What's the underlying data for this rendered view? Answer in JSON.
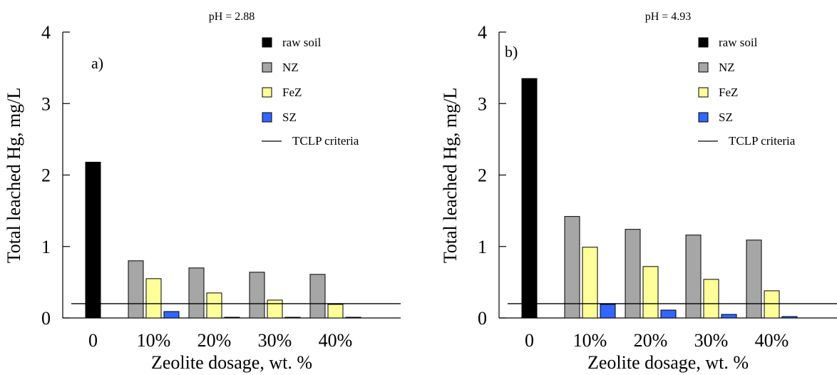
{
  "chart_data": [
    {
      "type": "bar",
      "title": "pH = 2.88",
      "panel_label": "a)",
      "xlabel": "Zeolite dosage, wt. %",
      "ylabel": "Total leached Hg, mg/L",
      "ylim": [
        0,
        4
      ],
      "yticks": [
        "0",
        "1",
        "2",
        "3",
        "4"
      ],
      "categories": [
        "0",
        "10%",
        "20%",
        "30%",
        "40%"
      ],
      "series": [
        {
          "name": "raw soil",
          "color": "#000000",
          "values": [
            2.18,
            null,
            null,
            null,
            null
          ]
        },
        {
          "name": "NZ",
          "color": "#a6a6a6",
          "values": [
            null,
            0.8,
            0.7,
            0.64,
            0.61
          ]
        },
        {
          "name": "FeZ",
          "color": "#ffff99",
          "values": [
            null,
            0.55,
            0.35,
            0.25,
            0.19
          ]
        },
        {
          "name": "SZ",
          "color": "#3366ff",
          "values": [
            null,
            0.09,
            0.01,
            0.01,
            0.01
          ]
        }
      ],
      "reference_line": {
        "name": "TCLP criteria",
        "value": 0.2
      },
      "legend_position": "top-right",
      "grid": false
    },
    {
      "type": "bar",
      "title": "pH = 4.93",
      "panel_label": "b)",
      "xlabel": "Zeolite dosage, wt. %",
      "ylabel": "Total leached Hg, mg/L",
      "ylim": [
        0,
        4
      ],
      "yticks": [
        "0",
        "1",
        "2",
        "3",
        "4"
      ],
      "categories": [
        "0",
        "10%",
        "20%",
        "30%",
        "40%"
      ],
      "series": [
        {
          "name": "raw soil",
          "color": "#000000",
          "values": [
            3.35,
            null,
            null,
            null,
            null
          ]
        },
        {
          "name": "NZ",
          "color": "#a6a6a6",
          "values": [
            null,
            1.42,
            1.24,
            1.16,
            1.09
          ]
        },
        {
          "name": "FeZ",
          "color": "#ffff99",
          "values": [
            null,
            0.99,
            0.72,
            0.54,
            0.38
          ]
        },
        {
          "name": "SZ",
          "color": "#3366ff",
          "values": [
            null,
            0.19,
            0.11,
            0.05,
            0.02
          ]
        }
      ],
      "reference_line": {
        "name": "TCLP criteria",
        "value": 0.2
      },
      "legend_position": "top-right",
      "grid": false
    }
  ]
}
